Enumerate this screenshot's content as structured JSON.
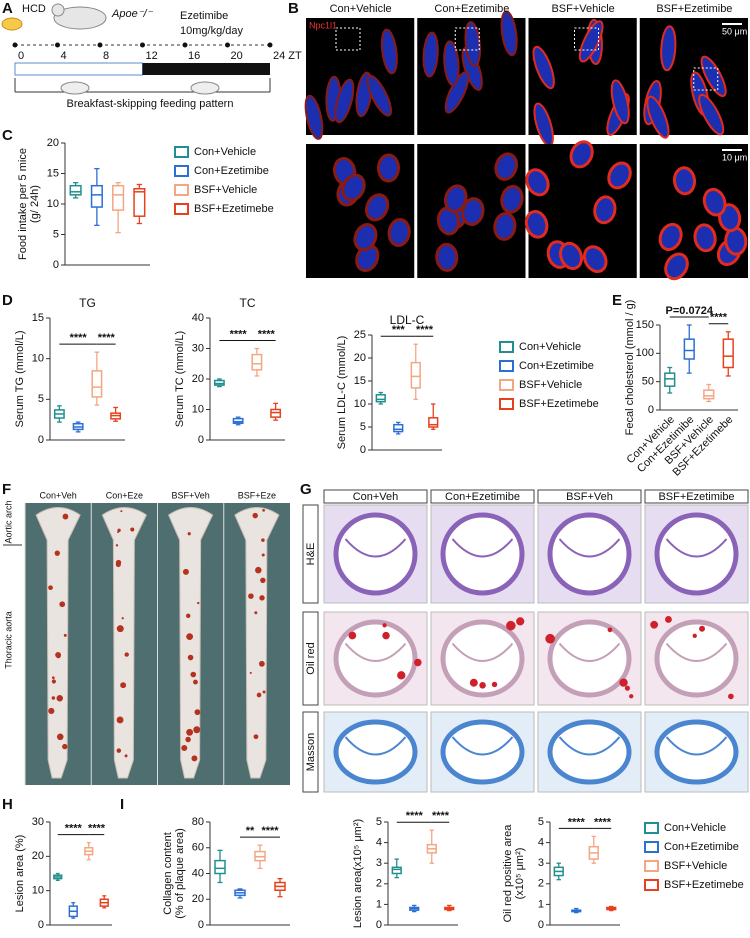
{
  "panel_labels": [
    "A",
    "B",
    "C",
    "D",
    "E",
    "F",
    "G",
    "H",
    "I"
  ],
  "panel_a": {
    "diet": "HCD",
    "mouse": "Apoe⁻/⁻",
    "drug": "Ezetimibe",
    "dose": "10mg/kg/day",
    "timeline_ticks": [
      0,
      4,
      8,
      12,
      16,
      20,
      {
        "value": 24,
        "label": "24 ZT"
      }
    ],
    "pattern": "Breakfast-skipping feeding pattern"
  },
  "panel_b": {
    "columns": [
      "Con+Vehicle",
      "Con+Ezetimibe",
      "BSF+Vehicle",
      "BSF+Ezetimibe"
    ],
    "stain": "Npc1l1",
    "scale_bars": [
      "50 μm",
      "10 μm"
    ]
  },
  "panel_f": {
    "columns": [
      "Con+Veh",
      "Con+Eze",
      "BSF+Veh",
      "BSF+Eze"
    ],
    "rows": [
      "Aortic arch",
      "Thoracic aorta"
    ]
  },
  "panel_g": {
    "columns": [
      "Con+Veh",
      "Con+Ezetimibe",
      "BSF+Veh",
      "BSF+Ezetimibe"
    ],
    "rows": [
      "H&E",
      "Oil red",
      "Masson"
    ]
  },
  "groups": {
    "names": [
      "Con+Vehicle",
      "Con+Ezetimibe",
      "BSF+Vehicle",
      "BSF+Ezetimebe"
    ],
    "colors": [
      "#1f8f8f",
      "#2a6fd6",
      "#f4a582",
      "#e8401c"
    ]
  },
  "chart_data": [
    {
      "type": "box",
      "ylabel": [
        "Food intake per 5 mice",
        "(g/ 24h)"
      ],
      "ylim": [
        0,
        20
      ],
      "yticks": [
        0,
        5,
        10,
        15,
        20
      ],
      "legend": "right",
      "boxes": [
        {
          "min": 11,
          "q1": 11.5,
          "median": 12,
          "q3": 13,
          "max": 13.5
        },
        {
          "min": 6.5,
          "q1": 9.5,
          "median": 11.5,
          "q3": 13,
          "max": 15.8
        },
        {
          "min": 5.3,
          "q1": 9,
          "median": 11.5,
          "q3": 13,
          "max": 13.5
        },
        {
          "min": 6.8,
          "q1": 8,
          "median": 12,
          "q3": 12.5,
          "max": 13.2
        }
      ],
      "comparisons": []
    },
    {
      "type": "box",
      "title": "TG",
      "ylabel": [
        "Serum TG (mmol/L)"
      ],
      "ylim": [
        0,
        15
      ],
      "yticks": [
        0,
        5,
        10,
        15
      ],
      "boxes": [
        {
          "min": 2.2,
          "q1": 2.7,
          "median": 3.2,
          "q3": 3.7,
          "max": 4.2
        },
        {
          "min": 1.0,
          "q1": 1.3,
          "median": 1.6,
          "q3": 2.0,
          "max": 2.2
        },
        {
          "min": 4.3,
          "q1": 5.3,
          "median": 6.5,
          "q3": 8.5,
          "max": 10.8
        },
        {
          "min": 2.3,
          "q1": 2.6,
          "median": 3.0,
          "q3": 3.3,
          "max": 4.0
        }
      ],
      "comparisons": [
        {
          "groups": [
            0,
            2
          ],
          "label": "****"
        },
        {
          "groups": [
            2,
            3
          ],
          "label": "****"
        }
      ]
    },
    {
      "type": "box",
      "title": "TC",
      "ylabel": [
        "Serum TC (mmol/L)"
      ],
      "ylim": [
        0,
        40
      ],
      "yticks": [
        0,
        10,
        20,
        30,
        40
      ],
      "boxes": [
        {
          "min": 17.5,
          "q1": 18,
          "median": 18.5,
          "q3": 19.5,
          "max": 20
        },
        {
          "min": 5,
          "q1": 5.5,
          "median": 6,
          "q3": 7,
          "max": 7.5
        },
        {
          "min": 21,
          "q1": 23,
          "median": 25,
          "q3": 28,
          "max": 30
        },
        {
          "min": 6.5,
          "q1": 7.5,
          "median": 9,
          "q3": 10,
          "max": 12
        }
      ],
      "comparisons": [
        {
          "groups": [
            0,
            2
          ],
          "label": "****"
        },
        {
          "groups": [
            2,
            3
          ],
          "label": "****"
        }
      ]
    },
    {
      "type": "box",
      "title": "LDL-C",
      "ylabel": [
        "Serum LDL-C (mmol/L)"
      ],
      "ylim": [
        0,
        25
      ],
      "yticks": [
        0,
        5,
        10,
        15,
        20,
        25
      ],
      "legend": "right",
      "boxes": [
        {
          "min": 10,
          "q1": 10.5,
          "median": 11,
          "q3": 12,
          "max": 12.5
        },
        {
          "min": 3.5,
          "q1": 4,
          "median": 4.5,
          "q3": 5.5,
          "max": 6
        },
        {
          "min": 11,
          "q1": 13.5,
          "median": 16,
          "q3": 19,
          "max": 23
        },
        {
          "min": 4.5,
          "q1": 5,
          "median": 5.5,
          "q3": 7,
          "max": 10
        }
      ],
      "comparisons": [
        {
          "groups": [
            0,
            2
          ],
          "label": "***"
        },
        {
          "groups": [
            2,
            3
          ],
          "label": "****"
        }
      ]
    },
    {
      "type": "box",
      "ylabel": [
        "Fecal cholesterol (mmol / g)"
      ],
      "ylim": [
        0,
        150
      ],
      "yticks": [
        0,
        50,
        100,
        150
      ],
      "categories": [
        "Con+Vehicle",
        "Con+Ezetimibe",
        "BSF+Vehicle",
        "BSF+Ezetimebe"
      ],
      "boxes": [
        {
          "min": 30,
          "q1": 42,
          "median": 55,
          "q3": 65,
          "max": 75
        },
        {
          "min": 65,
          "q1": 90,
          "median": 105,
          "q3": 125,
          "max": 150
        },
        {
          "min": 15,
          "q1": 20,
          "median": 25,
          "q3": 35,
          "max": 45
        },
        {
          "min": 60,
          "q1": 75,
          "median": 95,
          "q3": 125,
          "max": 138
        }
      ],
      "comparisons": [
        {
          "groups": [
            0,
            2
          ],
          "label": "P=0.0724"
        },
        {
          "groups": [
            2,
            3
          ],
          "label": "****"
        }
      ]
    },
    {
      "type": "box",
      "ylabel": [
        "Lesion area (%)"
      ],
      "ylim": [
        0,
        30
      ],
      "yticks": [
        0,
        10,
        20,
        30
      ],
      "boxes": [
        {
          "min": 13,
          "q1": 13.5,
          "median": 14,
          "q3": 14.5,
          "max": 15
        },
        {
          "min": 2,
          "q1": 2.5,
          "median": 4,
          "q3": 5.5,
          "max": 6.5
        },
        {
          "min": 19,
          "q1": 20.5,
          "median": 21.5,
          "q3": 22.5,
          "max": 24
        },
        {
          "min": 5,
          "q1": 5.5,
          "median": 6.5,
          "q3": 7.5,
          "max": 8.5
        }
      ],
      "comparisons": [
        {
          "groups": [
            0,
            2
          ],
          "label": "****"
        },
        {
          "groups": [
            2,
            3
          ],
          "label": "****"
        }
      ]
    },
    {
      "type": "box",
      "ylabel": [
        "Collagen content",
        "(% of plaque area)"
      ],
      "ylim": [
        0,
        80
      ],
      "yticks": [
        0,
        20,
        40,
        60,
        80
      ],
      "boxes": [
        {
          "min": 33,
          "q1": 40,
          "median": 44,
          "q3": 50,
          "max": 58
        },
        {
          "min": 21,
          "q1": 23,
          "median": 25,
          "q3": 27,
          "max": 28
        },
        {
          "min": 44,
          "q1": 50,
          "median": 53,
          "q3": 57,
          "max": 62
        },
        {
          "min": 22,
          "q1": 27,
          "median": 30,
          "q3": 33,
          "max": 36
        }
      ],
      "comparisons": [
        {
          "groups": [
            1,
            2
          ],
          "label": "**"
        },
        {
          "groups": [
            2,
            3
          ],
          "label": "****"
        }
      ]
    },
    {
      "type": "box",
      "ylabel": [
        "Lesion area(x10⁵ μm²)"
      ],
      "ylim": [
        0,
        5
      ],
      "yticks": [
        0,
        1,
        2,
        3,
        4,
        5
      ],
      "boxes": [
        {
          "min": 2.3,
          "q1": 2.5,
          "median": 2.7,
          "q3": 2.8,
          "max": 3.2
        },
        {
          "min": 0.65,
          "q1": 0.72,
          "median": 0.8,
          "q3": 0.85,
          "max": 0.95
        },
        {
          "min": 3.0,
          "q1": 3.5,
          "median": 3.7,
          "q3": 3.9,
          "max": 4.6
        },
        {
          "min": 0.7,
          "q1": 0.75,
          "median": 0.8,
          "q3": 0.85,
          "max": 0.95
        }
      ],
      "comparisons": [
        {
          "groups": [
            0,
            2
          ],
          "label": "****"
        },
        {
          "groups": [
            2,
            3
          ],
          "label": "****"
        }
      ]
    },
    {
      "type": "box",
      "ylabel": [
        "Oil red positive area",
        "(x10⁵ μm²)"
      ],
      "ylim": [
        0,
        5
      ],
      "yticks": [
        0,
        1,
        2,
        3,
        4,
        5
      ],
      "legend": "right",
      "boxes": [
        {
          "min": 2.2,
          "q1": 2.4,
          "median": 2.6,
          "q3": 2.8,
          "max": 3.0
        },
        {
          "min": 0.6,
          "q1": 0.65,
          "median": 0.7,
          "q3": 0.72,
          "max": 0.8
        },
        {
          "min": 3.0,
          "q1": 3.2,
          "median": 3.5,
          "q3": 3.8,
          "max": 4.3
        },
        {
          "min": 0.7,
          "q1": 0.75,
          "median": 0.8,
          "q3": 0.85,
          "max": 0.9
        }
      ],
      "comparisons": [
        {
          "groups": [
            0,
            2
          ],
          "label": "****"
        },
        {
          "groups": [
            2,
            3
          ],
          "label": "****"
        }
      ]
    }
  ]
}
